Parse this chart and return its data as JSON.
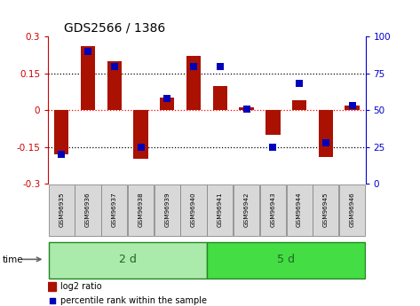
{
  "title": "GDS2566 / 1386",
  "samples": [
    "GSM96935",
    "GSM96936",
    "GSM96937",
    "GSM96938",
    "GSM96939",
    "GSM96940",
    "GSM96941",
    "GSM96942",
    "GSM96943",
    "GSM96944",
    "GSM96945",
    "GSM96946"
  ],
  "log2_ratio": [
    -0.18,
    0.26,
    0.2,
    -0.2,
    0.05,
    0.22,
    0.1,
    0.01,
    -0.1,
    0.04,
    -0.19,
    0.02
  ],
  "percentile_rank": [
    20,
    90,
    80,
    25,
    58,
    80,
    80,
    51,
    25,
    68,
    28,
    53
  ],
  "groups": [
    {
      "label": "2 d",
      "start": 0,
      "end": 6,
      "color": "#aaeaaa"
    },
    {
      "label": "5 d",
      "start": 6,
      "end": 12,
      "color": "#44dd44"
    }
  ],
  "ylim_left": [
    -0.3,
    0.3
  ],
  "ylim_right": [
    0,
    100
  ],
  "yticks_left": [
    -0.3,
    -0.15,
    0,
    0.15,
    0.3
  ],
  "yticks_left_labels": [
    "-0.3",
    "-0.15",
    "0",
    "0.15",
    "0.3"
  ],
  "yticks_right": [
    0,
    25,
    50,
    75,
    100
  ],
  "yticks_right_labels": [
    "0",
    "25",
    "50",
    "75",
    "100"
  ],
  "hlines_black": [
    0.15,
    -0.15
  ],
  "hline_red": 0,
  "bar_color": "#aa1100",
  "dot_color": "#0000bb",
  "bar_width": 0.55,
  "dot_size": 40,
  "group_text_color": "#226622",
  "time_label": "time",
  "legend_bar_label": "log2 ratio",
  "legend_dot_label": "percentile rank within the sample",
  "left_spine_color": "#cc0000",
  "right_spine_color": "#0000cc",
  "group_border_color": "#228822",
  "sample_box_color": "#d8d8d8",
  "sample_box_border": "#888888"
}
